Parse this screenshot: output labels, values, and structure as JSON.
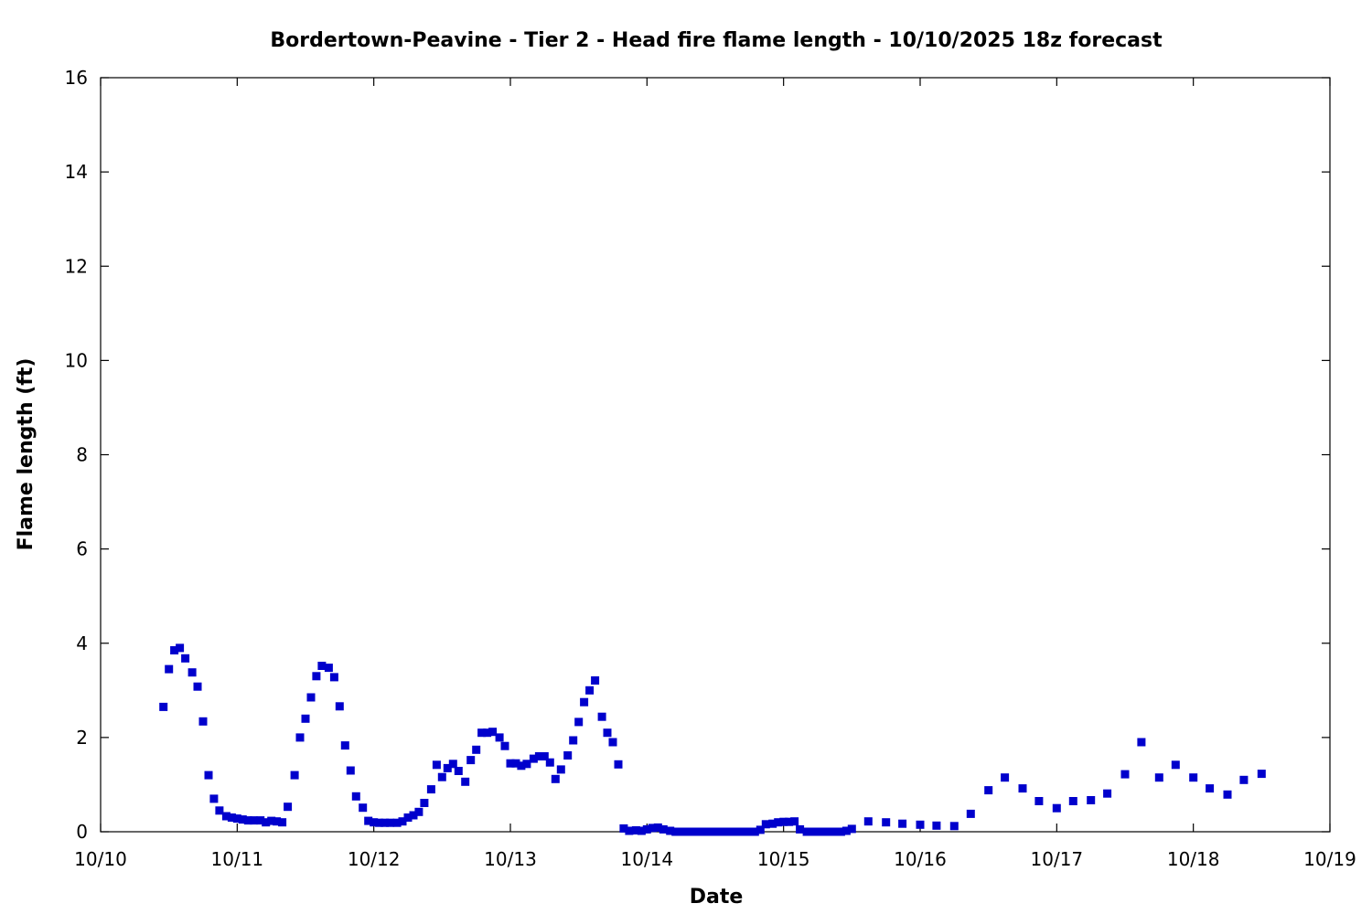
{
  "chart_data": {
    "type": "scatter",
    "title": "Bordertown-Peavine - Tier 2 - Head fire flame length - 10/10/2025 18z forecast",
    "xlabel": "Date",
    "ylabel": "Flame length (ft)",
    "x_unit": "days since 10/10 00:00",
    "xlim": [
      0,
      9
    ],
    "ylim": [
      0,
      16
    ],
    "x_ticks": [
      "10/10",
      "10/11",
      "10/12",
      "10/13",
      "10/14",
      "10/15",
      "10/16",
      "10/17",
      "10/18",
      "10/19"
    ],
    "y_ticks": [
      "0",
      "2",
      "4",
      "6",
      "8",
      "10",
      "12",
      "14",
      "16"
    ],
    "grid": false,
    "marker_color": "#0000cc",
    "series": [
      {
        "points": [
          [
            0.46,
            2.65
          ],
          [
            0.5,
            3.45
          ],
          [
            0.54,
            3.85
          ],
          [
            0.58,
            3.9
          ],
          [
            0.62,
            3.68
          ],
          [
            0.67,
            3.38
          ],
          [
            0.71,
            3.08
          ],
          [
            0.75,
            2.34
          ],
          [
            0.79,
            1.2
          ],
          [
            0.83,
            0.7
          ],
          [
            0.87,
            0.45
          ],
          [
            0.92,
            0.33
          ],
          [
            0.96,
            0.3
          ],
          [
            1.0,
            0.28
          ],
          [
            1.04,
            0.26
          ],
          [
            1.08,
            0.24
          ],
          [
            1.12,
            0.24
          ],
          [
            1.17,
            0.24
          ],
          [
            1.21,
            0.2
          ],
          [
            1.25,
            0.23
          ],
          [
            1.29,
            0.22
          ],
          [
            1.33,
            0.2
          ],
          [
            1.37,
            0.53
          ],
          [
            1.42,
            1.2
          ],
          [
            1.46,
            2.0
          ],
          [
            1.5,
            2.4
          ],
          [
            1.54,
            2.85
          ],
          [
            1.58,
            3.3
          ],
          [
            1.62,
            3.52
          ],
          [
            1.67,
            3.48
          ],
          [
            1.71,
            3.28
          ],
          [
            1.75,
            2.66
          ],
          [
            1.79,
            1.83
          ],
          [
            1.83,
            1.3
          ],
          [
            1.87,
            0.75
          ],
          [
            1.92,
            0.51
          ],
          [
            1.96,
            0.23
          ],
          [
            2.0,
            0.2
          ],
          [
            2.04,
            0.19
          ],
          [
            2.08,
            0.19
          ],
          [
            2.12,
            0.19
          ],
          [
            2.17,
            0.19
          ],
          [
            2.21,
            0.22
          ],
          [
            2.25,
            0.3
          ],
          [
            2.29,
            0.35
          ],
          [
            2.33,
            0.42
          ],
          [
            2.37,
            0.61
          ],
          [
            2.42,
            0.9
          ],
          [
            2.46,
            1.42
          ],
          [
            2.5,
            1.16
          ],
          [
            2.54,
            1.35
          ],
          [
            2.58,
            1.44
          ],
          [
            2.62,
            1.29
          ],
          [
            2.67,
            1.06
          ],
          [
            2.71,
            1.52
          ],
          [
            2.75,
            1.74
          ],
          [
            2.79,
            2.1
          ],
          [
            2.83,
            2.1
          ],
          [
            2.87,
            2.12
          ],
          [
            2.92,
            2.0
          ],
          [
            2.96,
            1.82
          ],
          [
            3.0,
            1.45
          ],
          [
            3.04,
            1.45
          ],
          [
            3.08,
            1.4
          ],
          [
            3.12,
            1.44
          ],
          [
            3.17,
            1.55
          ],
          [
            3.21,
            1.6
          ],
          [
            3.25,
            1.6
          ],
          [
            3.29,
            1.47
          ],
          [
            3.33,
            1.12
          ],
          [
            3.37,
            1.32
          ],
          [
            3.42,
            1.62
          ],
          [
            3.46,
            1.94
          ],
          [
            3.5,
            2.33
          ],
          [
            3.54,
            2.75
          ],
          [
            3.58,
            3.0
          ],
          [
            3.62,
            3.21
          ],
          [
            3.67,
            2.44
          ],
          [
            3.71,
            2.1
          ],
          [
            3.75,
            1.9
          ],
          [
            3.79,
            1.43
          ],
          [
            3.83,
            0.07
          ],
          [
            3.87,
            0.02
          ],
          [
            3.92,
            0.03
          ],
          [
            3.96,
            0.02
          ],
          [
            4.0,
            0.05
          ],
          [
            4.04,
            0.08
          ],
          [
            4.08,
            0.09
          ],
          [
            4.12,
            0.05
          ],
          [
            4.17,
            0.02
          ],
          [
            4.21,
            0.0
          ],
          [
            4.25,
            0.0
          ],
          [
            4.29,
            0.0
          ],
          [
            4.33,
            0.0
          ],
          [
            4.37,
            0.0
          ],
          [
            4.42,
            0.0
          ],
          [
            4.46,
            0.0
          ],
          [
            4.5,
            0.0
          ],
          [
            4.54,
            0.0
          ],
          [
            4.58,
            0.0
          ],
          [
            4.62,
            0.0
          ],
          [
            4.67,
            0.0
          ],
          [
            4.71,
            0.0
          ],
          [
            4.75,
            0.0
          ],
          [
            4.79,
            0.0
          ],
          [
            4.83,
            0.04
          ],
          [
            4.87,
            0.16
          ],
          [
            4.92,
            0.17
          ],
          [
            4.96,
            0.2
          ],
          [
            5.0,
            0.21
          ],
          [
            5.04,
            0.21
          ],
          [
            5.08,
            0.22
          ],
          [
            5.12,
            0.05
          ],
          [
            5.17,
            0.0
          ],
          [
            5.21,
            0.0
          ],
          [
            5.25,
            0.0
          ],
          [
            5.29,
            0.0
          ],
          [
            5.33,
            0.0
          ],
          [
            5.37,
            0.0
          ],
          [
            5.42,
            0.0
          ],
          [
            5.46,
            0.02
          ],
          [
            5.5,
            0.06
          ],
          [
            5.62,
            0.22
          ],
          [
            5.75,
            0.2
          ],
          [
            5.87,
            0.17
          ],
          [
            6.0,
            0.15
          ],
          [
            6.12,
            0.13
          ],
          [
            6.25,
            0.12
          ],
          [
            6.37,
            0.38
          ],
          [
            6.5,
            0.88
          ],
          [
            6.62,
            1.15
          ],
          [
            6.75,
            0.92
          ],
          [
            6.87,
            0.65
          ],
          [
            7.0,
            0.5
          ],
          [
            7.12,
            0.65
          ],
          [
            7.25,
            0.67
          ],
          [
            7.37,
            0.81
          ],
          [
            7.5,
            1.22
          ],
          [
            7.62,
            1.9
          ],
          [
            7.75,
            1.15
          ],
          [
            7.87,
            1.42
          ],
          [
            8.0,
            1.15
          ],
          [
            8.12,
            0.92
          ],
          [
            8.25,
            0.79
          ],
          [
            8.37,
            1.1
          ],
          [
            8.5,
            1.23
          ]
        ]
      }
    ]
  }
}
